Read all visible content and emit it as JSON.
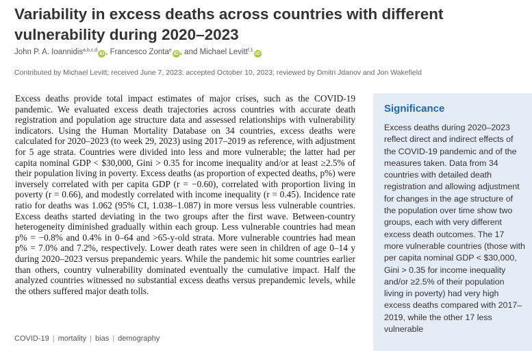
{
  "article": {
    "title": "Variability in excess deaths across countries with different vulnerability during 2020–2023",
    "authors": [
      {
        "name": "John P. A. Ioannidis",
        "affiliations": "a,b,c,d",
        "separator": ", "
      },
      {
        "name": "Francesco Zonta",
        "affiliations": "e",
        "separator": ", and "
      },
      {
        "name": "Michael Levitt",
        "affiliations": "f,1",
        "separator": ""
      }
    ],
    "orcid_label": "iD",
    "contributed": "Contributed by Michael Levitt; received June 7, 2023; accepted October 10, 2023; reviewed by Dmitri Jdanov and Jon Wakefield",
    "abstract": "Excess deaths provide total impact estimates of major crises, such as the COVID-19 pandemic. We evaluated excess death trajectories across countries with accurate death registration and population age structure data and assessed relationships with vulnerability indicators. Using the Human Mortality Database on 34 countries, excess deaths were calculated for 2020–2023 (to week 29, 2023) using 2017–2019 as reference, with adjustment for 5 age strata. Countries were divided into less and more vulnerable; the latter had per capita nominal GDP < $30,000, Gini > 0.35 for income inequality and/or at least ≥2.5% of their population living in poverty. Excess deaths (as proportion of expected deaths, p%) were inversely correlated with per capita GDP (r = −0.60), correlated with proportion living in poverty (r = 0.66), and modestly correlated with income inequality (r = 0.45). Incidence rate ratio for deaths was 1.062 (95% CI, 1.038–1.087) in more versus less vulnerable countries. Excess deaths started deviating in the two groups after the first wave. Between-country heterogeneity diminished gradually within each group. Less vulnerable countries had mean p% = −0.8% and 0.4% in 0–64 and >65-y-old strata. More vulnerable countries had mean p% = 7.0% and 7.2%, respectively. Lower death rates were seen in children of age 0–14 y during 2020–2023 versus prepandemic years. While the pandemic hit some countries earlier than others, country vulnerability dominated eventually the cumulative impact. Half the analyzed countries witnessed no substantial excess deaths versus prepandemic levels, while the others suffered major death tolls.",
    "keywords": [
      "COVID-19",
      "mortality",
      "bias",
      "demography"
    ],
    "keyword_separator": "|"
  },
  "significance": {
    "heading": "Significance",
    "body": "Excess deaths during 2020–2023 reflect direct and indirect effects of the COVID-19 pandemic and of the measures taken. Data from 34 countries with detailed death registration and allowing adjustment for changes in the age structure of the population over time show two groups, each with very different excess death outcomes. The 17 more vulnerable countries (those with per capita nominal GDP < $30,000, Gini > 0.35 for income inequality and/or ≥2.5% of their population living in poverty) had very high excess deaths compared with 2017–2019, while the other 17 less vulnerable"
  },
  "colors": {
    "significance_background": "#e4ecf6",
    "significance_heading": "#1f67b1",
    "orcid_badge": "#a6ce39"
  }
}
